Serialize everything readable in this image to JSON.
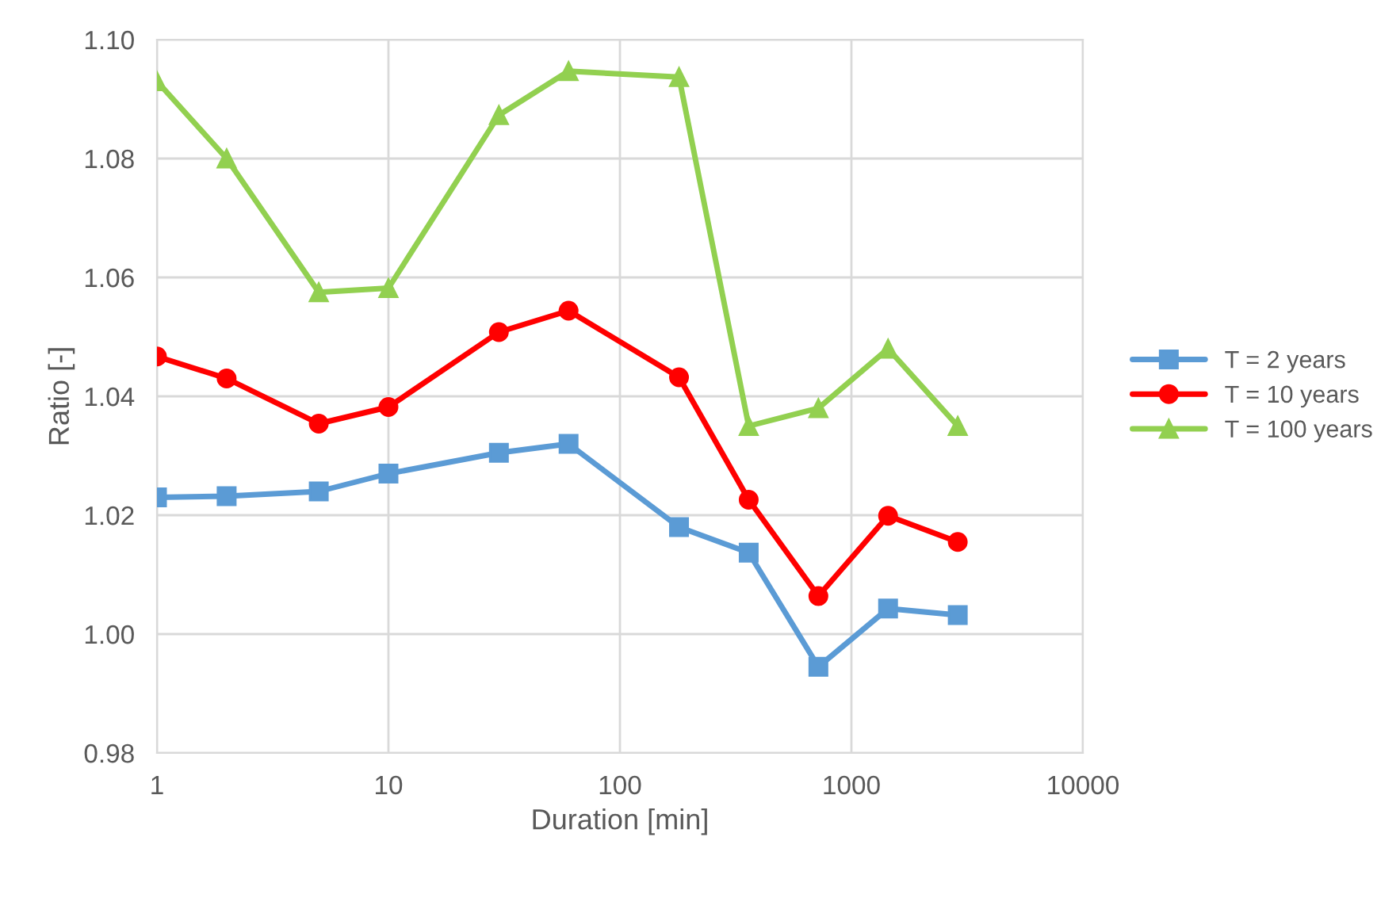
{
  "chart_data": {
    "type": "line",
    "xlabel": "Duration [min]",
    "ylabel": "Ratio [-]",
    "x": [
      1,
      2,
      5,
      10,
      30,
      60,
      180,
      360,
      720,
      1440,
      2880
    ],
    "series": [
      {
        "name": "T = 2 years",
        "color": "#5b9bd5",
        "marker": "square",
        "values": [
          1.023,
          1.0232,
          1.024,
          1.027,
          1.0305,
          1.032,
          1.018,
          1.0137,
          0.9945,
          1.0043,
          1.0032
        ]
      },
      {
        "name": "T = 10 years",
        "color": "#ff0000",
        "marker": "circle",
        "values": [
          1.0467,
          1.043,
          1.0354,
          1.0382,
          1.0508,
          1.0544,
          1.0432,
          1.0226,
          1.0064,
          1.0199,
          1.0155
        ]
      },
      {
        "name": "T = 100 years",
        "color": "#92d050",
        "marker": "triangle",
        "values": [
          1.093,
          1.08,
          1.0575,
          1.0582,
          1.0873,
          1.0947,
          1.0937,
          1.035,
          1.038,
          1.048,
          1.035
        ]
      }
    ],
    "log": "x",
    "xlim": [
      1,
      10000
    ],
    "xticks": [
      1,
      10,
      100,
      1000,
      10000
    ],
    "ylim": [
      0.98,
      1.1
    ],
    "yticks": [
      {
        "value": 0.98,
        "label": "0.98"
      },
      {
        "value": 1.0,
        "label": "1.00"
      },
      {
        "value": 1.02,
        "label": "1.02"
      },
      {
        "value": 1.04,
        "label": "1.04"
      },
      {
        "value": 1.06,
        "label": "1.06"
      },
      {
        "value": 1.08,
        "label": "1.08"
      },
      {
        "value": 1.1,
        "label": "1.10"
      }
    ],
    "grid": true,
    "legend": "right",
    "line_style": "solid"
  }
}
